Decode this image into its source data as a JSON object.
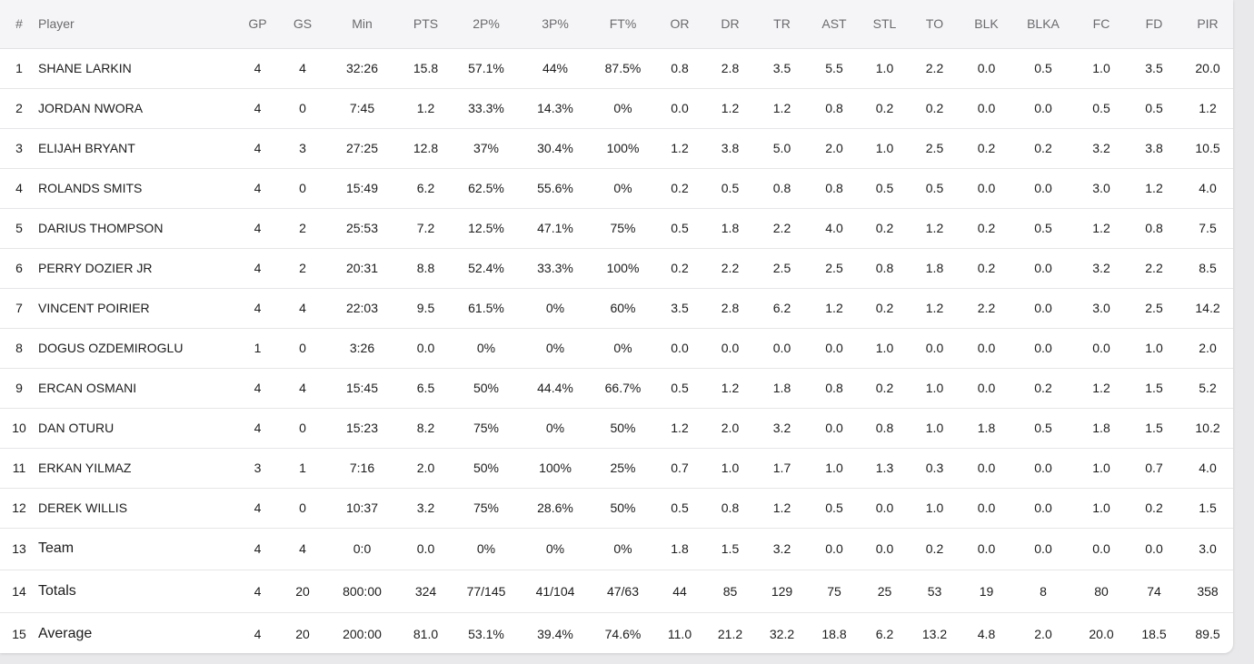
{
  "headers": [
    "#",
    "Player",
    "GP",
    "GS",
    "Min",
    "PTS",
    "2P%",
    "3P%",
    "FT%",
    "OR",
    "DR",
    "TR",
    "AST",
    "STL",
    "TO",
    "BLK",
    "BLKA",
    "FC",
    "FD",
    "PIR"
  ],
  "rows": [
    [
      "1",
      "SHANE LARKIN",
      "4",
      "4",
      "32:26",
      "15.8",
      "57.1%",
      "44%",
      "87.5%",
      "0.8",
      "2.8",
      "3.5",
      "5.5",
      "1.0",
      "2.2",
      "0.0",
      "0.5",
      "1.0",
      "3.5",
      "20.0"
    ],
    [
      "2",
      "JORDAN NWORA",
      "4",
      "0",
      "7:45",
      "1.2",
      "33.3%",
      "14.3%",
      "0%",
      "0.0",
      "1.2",
      "1.2",
      "0.8",
      "0.2",
      "0.2",
      "0.0",
      "0.0",
      "0.5",
      "0.5",
      "1.2"
    ],
    [
      "3",
      "ELIJAH BRYANT",
      "4",
      "3",
      "27:25",
      "12.8",
      "37%",
      "30.4%",
      "100%",
      "1.2",
      "3.8",
      "5.0",
      "2.0",
      "1.0",
      "2.5",
      "0.2",
      "0.2",
      "3.2",
      "3.8",
      "10.5"
    ],
    [
      "4",
      "ROLANDS SMITS",
      "4",
      "0",
      "15:49",
      "6.2",
      "62.5%",
      "55.6%",
      "0%",
      "0.2",
      "0.5",
      "0.8",
      "0.8",
      "0.5",
      "0.5",
      "0.0",
      "0.0",
      "3.0",
      "1.2",
      "4.0"
    ],
    [
      "5",
      "DARIUS THOMPSON",
      "4",
      "2",
      "25:53",
      "7.2",
      "12.5%",
      "47.1%",
      "75%",
      "0.5",
      "1.8",
      "2.2",
      "4.0",
      "0.2",
      "1.2",
      "0.2",
      "0.5",
      "1.2",
      "0.8",
      "7.5"
    ],
    [
      "6",
      "PERRY DOZIER JR",
      "4",
      "2",
      "20:31",
      "8.8",
      "52.4%",
      "33.3%",
      "100%",
      "0.2",
      "2.2",
      "2.5",
      "2.5",
      "0.8",
      "1.8",
      "0.2",
      "0.0",
      "3.2",
      "2.2",
      "8.5"
    ],
    [
      "7",
      "VINCENT POIRIER",
      "4",
      "4",
      "22:03",
      "9.5",
      "61.5%",
      "0%",
      "60%",
      "3.5",
      "2.8",
      "6.2",
      "1.2",
      "0.2",
      "1.2",
      "2.2",
      "0.0",
      "3.0",
      "2.5",
      "14.2"
    ],
    [
      "8",
      "DOGUS OZDEMIROGLU",
      "1",
      "0",
      "3:26",
      "0.0",
      "0%",
      "0%",
      "0%",
      "0.0",
      "0.0",
      "0.0",
      "0.0",
      "1.0",
      "0.0",
      "0.0",
      "0.0",
      "0.0",
      "1.0",
      "2.0"
    ],
    [
      "9",
      "ERCAN OSMANI",
      "4",
      "4",
      "15:45",
      "6.5",
      "50%",
      "44.4%",
      "66.7%",
      "0.5",
      "1.2",
      "1.8",
      "0.8",
      "0.2",
      "1.0",
      "0.0",
      "0.2",
      "1.2",
      "1.5",
      "5.2"
    ],
    [
      "10",
      "DAN OTURU",
      "4",
      "0",
      "15:23",
      "8.2",
      "75%",
      "0%",
      "50%",
      "1.2",
      "2.0",
      "3.2",
      "0.0",
      "0.8",
      "1.0",
      "1.8",
      "0.5",
      "1.8",
      "1.5",
      "10.2"
    ],
    [
      "11",
      "ERKAN YILMAZ",
      "3",
      "1",
      "7:16",
      "2.0",
      "50%",
      "100%",
      "25%",
      "0.7",
      "1.0",
      "1.7",
      "1.0",
      "1.3",
      "0.3",
      "0.0",
      "0.0",
      "1.0",
      "0.7",
      "4.0"
    ],
    [
      "12",
      "DEREK WILLIS",
      "4",
      "0",
      "10:37",
      "3.2",
      "75%",
      "28.6%",
      "50%",
      "0.5",
      "0.8",
      "1.2",
      "0.5",
      "0.0",
      "1.0",
      "0.0",
      "0.0",
      "1.0",
      "0.2",
      "1.5"
    ]
  ],
  "summary_rows": [
    [
      "13",
      "Team",
      "4",
      "4",
      "0:0",
      "0.0",
      "0%",
      "0%",
      "0%",
      "1.8",
      "1.5",
      "3.2",
      "0.0",
      "0.0",
      "0.2",
      "0.0",
      "0.0",
      "0.0",
      "0.0",
      "3.0"
    ],
    [
      "14",
      "Totals",
      "4",
      "20",
      "800:00",
      "324",
      "77/145",
      "41/104",
      "47/63",
      "44",
      "85",
      "129",
      "75",
      "25",
      "53",
      "19",
      "8",
      "80",
      "74",
      "358"
    ],
    [
      "15",
      "Average",
      "4",
      "20",
      "200:00",
      "81.0",
      "53.1%",
      "39.4%",
      "74.6%",
      "11.0",
      "21.2",
      "32.2",
      "18.8",
      "6.2",
      "13.2",
      "4.8",
      "2.0",
      "20.0",
      "18.5",
      "89.5"
    ]
  ],
  "colors": {
    "header_bg": "#f5f5f7",
    "header_text": "#6b6b6f",
    "row_text": "#1c1c1c",
    "divider": "#e6e6e8",
    "page_bg": "#e9e9eb"
  }
}
